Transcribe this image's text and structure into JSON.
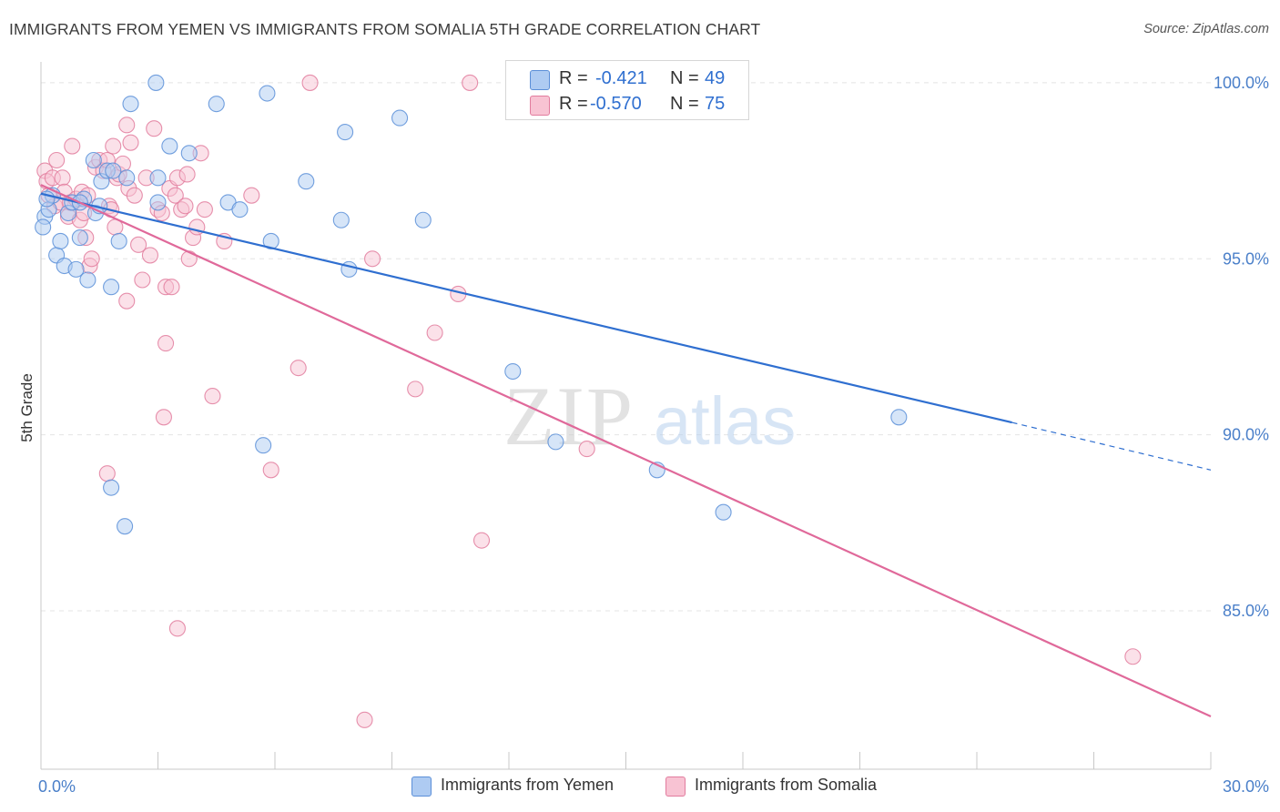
{
  "header": {
    "title": "IMMIGRANTS FROM YEMEN VS IMMIGRANTS FROM SOMALIA 5TH GRADE CORRELATION CHART",
    "source": "Source: ZipAtlas.com"
  },
  "legend": {
    "rows": [
      {
        "r_label": "R =",
        "r_value": "-0.421",
        "n_label": "N =",
        "n_value": "49"
      },
      {
        "r_label": "R =",
        "r_value": "-0.570",
        "n_label": "N =",
        "n_value": "75"
      }
    ],
    "bottom": [
      "Immigrants from Yemen",
      "Immigrants from Somalia"
    ]
  },
  "watermark": {
    "zip": "ZIP",
    "atlas": "atlas"
  },
  "colors": {
    "yemen_fill": "#aecbf2",
    "yemen_stroke": "#5b8fd8",
    "yemen_line": "#2f6fd0",
    "somalia_fill": "#f8c3d3",
    "somalia_stroke": "#e27c9e",
    "somalia_line": "#e0699a",
    "tick": "#4a7fc9",
    "grid": "#e4e4e4"
  },
  "chart_data": {
    "type": "scatter",
    "title": "IMMIGRANTS FROM YEMEN VS IMMIGRANTS FROM SOMALIA 5TH GRADE CORRELATION CHART",
    "xlabel": "",
    "ylabel": "5th Grade",
    "xlim": [
      0,
      30
    ],
    "ylim": [
      80.5,
      100.8
    ],
    "x_tick_labels": [
      "0.0%",
      "30.0%"
    ],
    "y_ticks": [
      85,
      90,
      95,
      100
    ],
    "y_tick_labels": [
      "85.0%",
      "90.0%",
      "95.0%",
      "100.0%"
    ],
    "grid": true,
    "legend_position": "top-center",
    "series": [
      {
        "name": "Immigrants from Yemen",
        "r": -0.421,
        "n": 49,
        "trend": {
          "x0": 0,
          "y0": 96.85,
          "x1": 24.9,
          "y1": 90.35,
          "dash_to_x": 30,
          "dash_to_y": 89.0
        },
        "points": [
          [
            0.1,
            96.2
          ],
          [
            0.2,
            96.4
          ],
          [
            0.3,
            96.8
          ],
          [
            0.4,
            95.1
          ],
          [
            0.5,
            95.5
          ],
          [
            0.6,
            94.8
          ],
          [
            0.7,
            96.3
          ],
          [
            0.8,
            96.6
          ],
          [
            0.9,
            94.7
          ],
          [
            1.0,
            95.6
          ],
          [
            1.1,
            96.7
          ],
          [
            1.2,
            94.4
          ],
          [
            1.35,
            97.8
          ],
          [
            1.4,
            96.3
          ],
          [
            1.5,
            96.5
          ],
          [
            1.55,
            97.2
          ],
          [
            1.7,
            97.5
          ],
          [
            1.8,
            94.2
          ],
          [
            1.85,
            97.5
          ],
          [
            2.0,
            95.5
          ],
          [
            2.2,
            97.3
          ],
          [
            2.3,
            99.4
          ],
          [
            1.8,
            88.5
          ],
          [
            2.15,
            87.4
          ],
          [
            2.95,
            100.0
          ],
          [
            3.0,
            97.3
          ],
          [
            3.0,
            96.6
          ],
          [
            3.3,
            98.2
          ],
          [
            3.8,
            98.0
          ],
          [
            4.5,
            99.4
          ],
          [
            4.8,
            96.6
          ],
          [
            5.1,
            96.4
          ],
          [
            5.7,
            89.7
          ],
          [
            5.8,
            99.7
          ],
          [
            5.9,
            95.5
          ],
          [
            6.8,
            97.2
          ],
          [
            7.7,
            96.1
          ],
          [
            7.8,
            98.6
          ],
          [
            7.9,
            94.7
          ],
          [
            9.2,
            99.0
          ],
          [
            9.8,
            96.1
          ],
          [
            12.1,
            91.8
          ],
          [
            13.2,
            89.8
          ],
          [
            15.8,
            89.0
          ],
          [
            17.5,
            87.8
          ],
          [
            22.0,
            90.5
          ],
          [
            0.05,
            95.9
          ],
          [
            0.15,
            96.7
          ],
          [
            1.0,
            96.6
          ]
        ]
      },
      {
        "name": "Immigrants from Somalia",
        "r": -0.57,
        "n": 75,
        "trend": {
          "x0": 0,
          "y0": 97.1,
          "x1": 30,
          "y1": 82.0
        },
        "points": [
          [
            0.1,
            97.5
          ],
          [
            0.15,
            97.2
          ],
          [
            0.2,
            96.8
          ],
          [
            0.3,
            97.3
          ],
          [
            0.35,
            96.5
          ],
          [
            0.4,
            97.8
          ],
          [
            0.5,
            96.6
          ],
          [
            0.55,
            97.3
          ],
          [
            0.6,
            96.9
          ],
          [
            0.7,
            96.2
          ],
          [
            0.75,
            96.6
          ],
          [
            0.8,
            98.2
          ],
          [
            0.9,
            96.7
          ],
          [
            1.0,
            96.1
          ],
          [
            1.05,
            96.9
          ],
          [
            1.1,
            96.3
          ],
          [
            1.15,
            95.6
          ],
          [
            1.2,
            96.8
          ],
          [
            1.25,
            94.8
          ],
          [
            1.3,
            95.0
          ],
          [
            1.4,
            97.6
          ],
          [
            1.5,
            97.8
          ],
          [
            1.6,
            97.5
          ],
          [
            1.7,
            97.8
          ],
          [
            1.75,
            96.5
          ],
          [
            1.8,
            96.4
          ],
          [
            1.85,
            98.2
          ],
          [
            1.9,
            95.9
          ],
          [
            1.95,
            97.3
          ],
          [
            2.0,
            97.4
          ],
          [
            2.1,
            97.7
          ],
          [
            2.2,
            98.8
          ],
          [
            2.25,
            97.0
          ],
          [
            2.3,
            98.3
          ],
          [
            2.4,
            96.8
          ],
          [
            2.5,
            95.4
          ],
          [
            2.6,
            94.4
          ],
          [
            2.7,
            97.3
          ],
          [
            2.8,
            95.1
          ],
          [
            2.9,
            98.7
          ],
          [
            3.0,
            96.4
          ],
          [
            3.1,
            96.3
          ],
          [
            3.2,
            94.2
          ],
          [
            3.3,
            97.0
          ],
          [
            3.35,
            94.2
          ],
          [
            3.45,
            96.8
          ],
          [
            3.5,
            97.3
          ],
          [
            3.6,
            96.4
          ],
          [
            3.7,
            96.5
          ],
          [
            3.75,
            97.4
          ],
          [
            3.8,
            95.0
          ],
          [
            3.9,
            95.6
          ],
          [
            4.0,
            95.9
          ],
          [
            4.1,
            98.0
          ],
          [
            4.2,
            96.4
          ],
          [
            4.4,
            91.1
          ],
          [
            4.7,
            95.5
          ],
          [
            5.4,
            96.8
          ],
          [
            1.7,
            88.9
          ],
          [
            3.15,
            90.5
          ],
          [
            3.2,
            92.6
          ],
          [
            3.5,
            84.5
          ],
          [
            5.9,
            89.0
          ],
          [
            6.6,
            91.9
          ],
          [
            6.9,
            100.0
          ],
          [
            8.3,
            81.9
          ],
          [
            9.6,
            91.3
          ],
          [
            8.5,
            95.0
          ],
          [
            10.1,
            92.9
          ],
          [
            10.7,
            94.0
          ],
          [
            11.0,
            100.0
          ],
          [
            11.3,
            87.0
          ],
          [
            14.0,
            89.6
          ],
          [
            28.0,
            83.7
          ],
          [
            2.2,
            93.8
          ]
        ]
      }
    ]
  }
}
